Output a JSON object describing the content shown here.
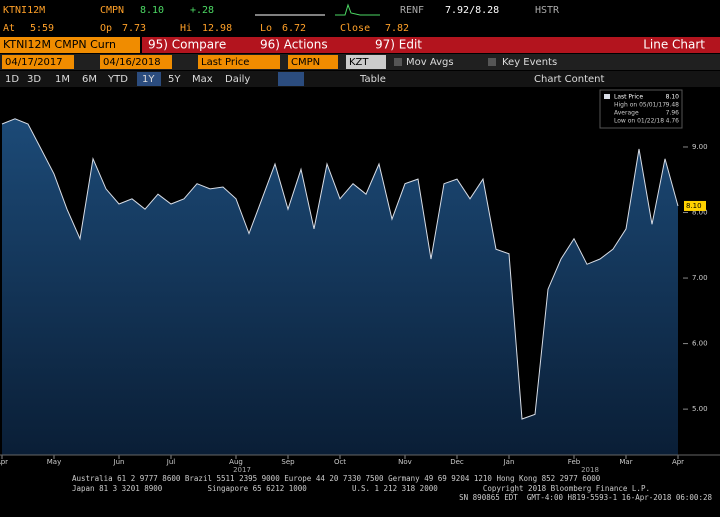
{
  "header": {
    "ticker": "KTNI12M",
    "field": "CMPN",
    "price": "8.10",
    "change": "+.28",
    "at_label": "At",
    "time": "5:59",
    "op_label": "Op",
    "op": "7.73",
    "hi_label": "Hi",
    "hi": "12.98",
    "lo_label": "Lo",
    "lo": "6.72",
    "close_label": "Close",
    "close": "7.82",
    "renf_label": "RENF",
    "renf": "7.92/8.28",
    "hstr": "HSTR"
  },
  "toolbar": {
    "security": "KTNI12M CMPN Curn",
    "compare": "95) Compare",
    "actions": "96) Actions",
    "edit": "97) Edit",
    "view": "Line Chart"
  },
  "settings": {
    "start": "04/17/2017",
    "end": "04/16/2018",
    "field": "Last Price",
    "source": "CMPN",
    "currency": "KZT",
    "mov_avgs": "Mov Avgs",
    "key_events": "Key Events"
  },
  "periods": {
    "items": [
      "1D",
      "3D",
      "1M",
      "6M",
      "YTD",
      "1Y",
      "5Y",
      "Max"
    ],
    "frequency": "Daily",
    "table": "Table",
    "chart_content": "Chart Content"
  },
  "chart_data": {
    "type": "line",
    "categories": [
      "Apr",
      null,
      null,
      null,
      "May",
      null,
      null,
      null,
      null,
      "Jun",
      null,
      null,
      null,
      "Jul",
      null,
      null,
      null,
      null,
      "Aug",
      null,
      null,
      null,
      "Sep",
      null,
      null,
      null,
      "Oct",
      null,
      null,
      null,
      null,
      "Nov",
      null,
      null,
      null,
      "Dec",
      null,
      null,
      null,
      "Jan",
      null,
      null,
      null,
      null,
      "Feb",
      null,
      null,
      null,
      "Mar",
      null,
      null,
      null,
      "Apr"
    ],
    "years": [
      "2017",
      "2018"
    ],
    "series": [
      {
        "name": "Last Price",
        "color": "#d8dde6",
        "values": [
          9.35,
          9.43,
          9.35,
          8.97,
          8.59,
          8.05,
          7.6,
          8.82,
          8.36,
          8.13,
          8.21,
          8.05,
          8.28,
          8.13,
          8.21,
          8.44,
          8.36,
          8.39,
          8.21,
          7.68,
          8.21,
          8.74,
          8.05,
          8.66,
          7.75,
          8.74,
          8.21,
          8.44,
          8.28,
          8.74,
          7.9,
          8.44,
          8.51,
          7.29,
          8.44,
          8.51,
          8.21,
          8.51,
          7.44,
          7.37,
          4.85,
          4.92,
          6.83,
          7.29,
          7.6,
          7.21,
          7.29,
          7.44,
          7.75,
          8.97,
          7.82,
          8.82,
          8.1
        ]
      }
    ],
    "last_label": "8.10",
    "stats": [
      {
        "label": "High on 05/01/17",
        "value": "9.48"
      },
      {
        "label": "Average",
        "value": "7.96"
      },
      {
        "label": "Low on 01/22/18",
        "value": "4.76"
      }
    ],
    "ylim": [
      4.3,
      9.9
    ],
    "yticks": [
      {
        "value": 5,
        "label": "5.00"
      },
      {
        "value": 6,
        "label": "6.00"
      },
      {
        "value": 7,
        "label": "7.00"
      },
      {
        "value": 8,
        "label": "8.00"
      },
      {
        "value": 9,
        "label": "9.00"
      }
    ]
  },
  "footer": {
    "line1": "Australia 61 2 9777 8600 Brazil 5511 2395 9000 Europe 44 20 7330 7500 Germany 49 69 9204 1210 Hong Kong 852 2977 6000",
    "line2": "Japan 81 3 3201 8900          Singapore 65 6212 1000          U.S. 1 212 318 2000          Copyright 2018 Bloomberg Finance L.P.",
    "line3": "SN 890865 EDT  GMT-4:00 H819-5593-1 16-Apr-2018 06:00:28"
  }
}
